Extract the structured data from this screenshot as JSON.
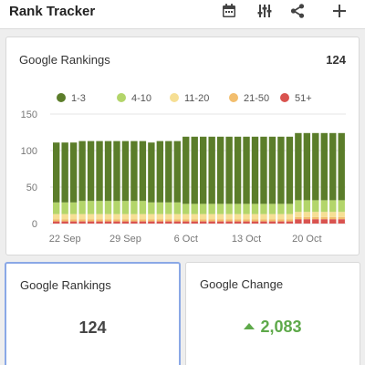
{
  "header": {
    "title": "Rank Tracker",
    "icons": [
      "calendar-icon",
      "filter-sliders-icon",
      "share-icon",
      "plus-icon"
    ]
  },
  "rankings_chart_card": {
    "title": "Google Rankings",
    "count": "124"
  },
  "chart_data": {
    "type": "bar",
    "stacked": true,
    "legend_position": "top",
    "grid": "horizontal",
    "ylim": [
      0,
      150
    ],
    "yticks": [
      0,
      50,
      100,
      150
    ],
    "xticks": [
      {
        "index": 1,
        "label": "22 Sep"
      },
      {
        "index": 8,
        "label": "29 Sep"
      },
      {
        "index": 15,
        "label": "6 Oct"
      },
      {
        "index": 22,
        "label": "13 Oct"
      },
      {
        "index": 29,
        "label": "20 Oct"
      }
    ],
    "series": [
      {
        "name": "1-3",
        "color": "#5b7d2a",
        "values": [
          82,
          82,
          82,
          82,
          82,
          82,
          82,
          82,
          82,
          82,
          82,
          82,
          84,
          84,
          84,
          92,
          92,
          92,
          92,
          92,
          92,
          92,
          92,
          92,
          92,
          92,
          92,
          92,
          92,
          92,
          92,
          92,
          92,
          92
        ]
      },
      {
        "name": "4-10",
        "color": "#b3d56a",
        "values": [
          16,
          16,
          16,
          18,
          18,
          18,
          18,
          18,
          18,
          18,
          18,
          16,
          16,
          16,
          16,
          14,
          14,
          14,
          14,
          14,
          14,
          14,
          14,
          14,
          14,
          14,
          14,
          14,
          16,
          16,
          16,
          16,
          16,
          16
        ]
      },
      {
        "name": "11-20",
        "color": "#f6df94",
        "values": [
          7,
          7,
          7,
          7,
          7,
          7,
          7,
          7,
          7,
          7,
          7,
          7,
          7,
          7,
          7,
          7,
          7,
          7,
          7,
          7,
          7,
          7,
          7,
          7,
          7,
          7,
          7,
          7,
          7,
          7,
          7,
          7,
          7,
          7
        ]
      },
      {
        "name": "21-50",
        "color": "#f2be6e",
        "values": [
          3,
          3,
          3,
          3,
          3,
          3,
          3,
          3,
          3,
          3,
          3,
          3,
          3,
          3,
          3,
          3,
          3,
          3,
          3,
          3,
          3,
          3,
          3,
          3,
          3,
          3,
          3,
          3,
          3,
          3,
          3,
          3,
          3,
          3
        ]
      },
      {
        "name": "51+",
        "color": "#d9534f",
        "values": [
          3,
          3,
          3,
          3,
          3,
          3,
          3,
          3,
          3,
          3,
          3,
          3,
          3,
          3,
          3,
          3,
          3,
          3,
          3,
          3,
          3,
          3,
          3,
          3,
          3,
          3,
          3,
          3,
          6,
          6,
          6,
          6,
          6,
          6
        ]
      }
    ]
  },
  "stats": {
    "rankings": {
      "title": "Google Rankings",
      "value": "124"
    },
    "change": {
      "title": "Google Change",
      "value": "2,083",
      "direction": "up",
      "color": "#5ea94a"
    }
  }
}
